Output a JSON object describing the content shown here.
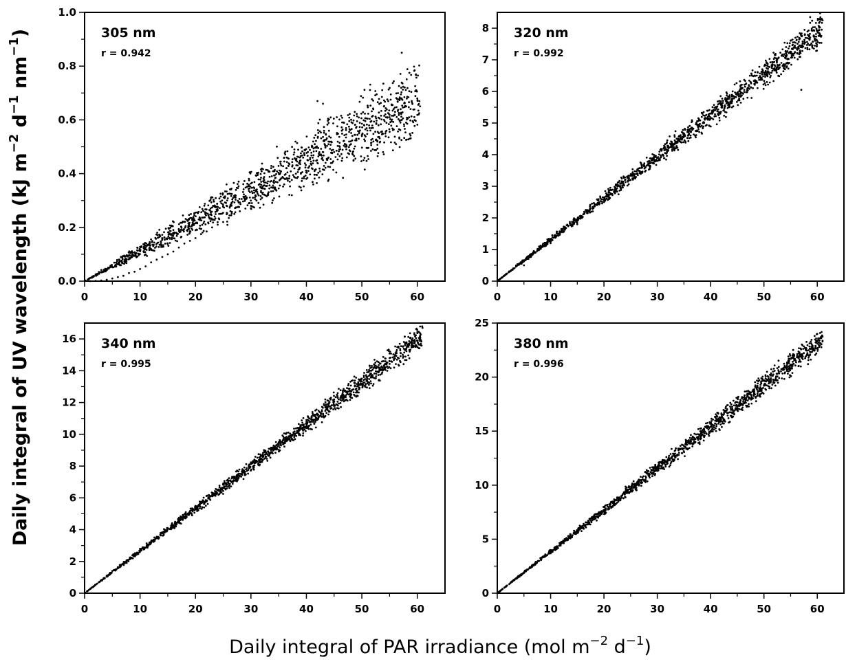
{
  "figure": {
    "ylabel": {
      "main": "Daily integral of UV wavelength (kJ m",
      "sup1": "−2",
      "mid1": " d",
      "sup2": "−1",
      "mid2": " nm",
      "sup3": "−1",
      "end": ")"
    },
    "xlabel": {
      "main": "Daily integral of PAR irradiance (mol m",
      "sup1": "−2",
      "mid1": " d",
      "sup2": "−1",
      "end": ")"
    }
  },
  "chart_data": [
    {
      "type": "scatter",
      "panel_label": "305 nm",
      "r_label": "r = 0.942",
      "xlim": [
        0,
        65
      ],
      "ylim": [
        0,
        1.0
      ],
      "xticks": [
        0,
        10,
        20,
        30,
        40,
        50,
        60
      ],
      "yticks": [
        0.0,
        0.2,
        0.4,
        0.6,
        0.8,
        1.0
      ],
      "ytick_decimals": 1,
      "points": [
        [
          1,
          0.0
        ],
        [
          2,
          0.001
        ],
        [
          3,
          0.002
        ],
        [
          4,
          0.005
        ],
        [
          5,
          0.01
        ],
        [
          6,
          0.015
        ],
        [
          7,
          0.02
        ],
        [
          8,
          0.03
        ],
        [
          9,
          0.035
        ],
        [
          10,
          0.045
        ],
        [
          11,
          0.055
        ],
        [
          12,
          0.07
        ],
        [
          13,
          0.08
        ],
        [
          14,
          0.09
        ],
        [
          15,
          0.1
        ],
        [
          16,
          0.11
        ],
        [
          17,
          0.125
        ],
        [
          18,
          0.14
        ],
        [
          19,
          0.15
        ],
        [
          20,
          0.16
        ],
        [
          21,
          0.175
        ],
        [
          22,
          0.185
        ],
        [
          23,
          0.2
        ],
        [
          24,
          0.21
        ],
        [
          25,
          0.22
        ],
        [
          26,
          0.235
        ],
        [
          27,
          0.25
        ],
        [
          28,
          0.26
        ],
        [
          29,
          0.27
        ],
        [
          30,
          0.28
        ],
        [
          31,
          0.3
        ],
        [
          32,
          0.31
        ],
        [
          33,
          0.32
        ],
        [
          34,
          0.335
        ],
        [
          35,
          0.345
        ],
        [
          36,
          0.36
        ],
        [
          37,
          0.37
        ],
        [
          38,
          0.385
        ],
        [
          39,
          0.4
        ],
        [
          40,
          0.41
        ],
        [
          41,
          0.42
        ],
        [
          42,
          0.44
        ],
        [
          43,
          0.45
        ],
        [
          44,
          0.46
        ],
        [
          45,
          0.48
        ],
        [
          46,
          0.49
        ],
        [
          47,
          0.5
        ],
        [
          48,
          0.52
        ],
        [
          49,
          0.53
        ],
        [
          50,
          0.54
        ],
        [
          51,
          0.56
        ],
        [
          52,
          0.57
        ],
        [
          53,
          0.58
        ],
        [
          54,
          0.6
        ],
        [
          55,
          0.61
        ],
        [
          56,
          0.63
        ],
        [
          57,
          0.64
        ],
        [
          58,
          0.65
        ],
        [
          59,
          0.67
        ],
        [
          60,
          0.68
        ]
      ],
      "trend": {
        "slope": 0.0112,
        "spread_frac": 0.32,
        "count": 1400,
        "xmax": 60.5,
        "extra_points": [
          [
            57.2,
            0.85
          ],
          [
            42,
            0.67
          ],
          [
            43,
            0.66
          ]
        ]
      }
    },
    {
      "type": "scatter",
      "panel_label": "320 nm",
      "r_label": "r = 0.992",
      "xlim": [
        0,
        65
      ],
      "ylim": [
        0,
        8.5
      ],
      "xticks": [
        0,
        10,
        20,
        30,
        40,
        50,
        60
      ],
      "yticks": [
        0,
        1,
        2,
        3,
        4,
        5,
        6,
        7,
        8
      ],
      "ytick_decimals": 0,
      "points": [
        [
          5,
          0.5
        ],
        [
          10,
          1.2
        ],
        [
          15,
          1.8
        ],
        [
          20,
          2.5
        ],
        [
          25,
          3.2
        ],
        [
          30,
          3.9
        ],
        [
          35,
          4.6
        ],
        [
          40,
          5.3
        ],
        [
          45,
          5.9
        ],
        [
          50,
          6.6
        ],
        [
          55,
          7.2
        ],
        [
          60,
          7.9
        ]
      ],
      "trend": {
        "slope": 0.131,
        "spread_frac": 0.09,
        "count": 1400,
        "xmax": 61,
        "extra_points": [
          [
            57,
            6.05
          ],
          [
            61,
            8.25
          ]
        ]
      }
    },
    {
      "type": "scatter",
      "panel_label": "340 nm",
      "r_label": "r = 0.995",
      "xlim": [
        0,
        65
      ],
      "ylim": [
        0,
        17
      ],
      "xticks": [
        0,
        10,
        20,
        30,
        40,
        50,
        60
      ],
      "yticks": [
        0,
        2,
        4,
        6,
        8,
        10,
        12,
        14,
        16
      ],
      "ytick_decimals": 0,
      "points": [
        [
          5,
          1.4
        ],
        [
          10,
          2.8
        ],
        [
          15,
          4.1
        ],
        [
          20,
          5.5
        ],
        [
          25,
          6.9
        ],
        [
          30,
          8.2
        ],
        [
          35,
          9.5
        ],
        [
          40,
          10.9
        ],
        [
          45,
          12.2
        ],
        [
          50,
          13.5
        ],
        [
          55,
          14.8
        ],
        [
          60,
          15.9
        ]
      ],
      "trend": {
        "slope": 0.266,
        "spread_frac": 0.07,
        "count": 1400,
        "xmax": 61,
        "extra_points": [
          [
            60.5,
            16.2
          ]
        ]
      }
    },
    {
      "type": "scatter",
      "panel_label": "380 nm",
      "r_label": "r = 0.996",
      "xlim": [
        0,
        65
      ],
      "ylim": [
        0,
        25
      ],
      "xticks": [
        0,
        10,
        20,
        30,
        40,
        50,
        60
      ],
      "yticks": [
        0,
        5,
        10,
        15,
        20,
        25
      ],
      "ytick_decimals": 0,
      "points": [
        [
          5,
          1.9
        ],
        [
          10,
          3.8
        ],
        [
          15,
          5.8
        ],
        [
          20,
          7.7
        ],
        [
          25,
          9.6
        ],
        [
          30,
          11.5
        ],
        [
          35,
          13.4
        ],
        [
          40,
          15.4
        ],
        [
          45,
          17.3
        ],
        [
          50,
          19.2
        ],
        [
          55,
          21.1
        ],
        [
          60,
          23.1
        ]
      ],
      "trend": {
        "slope": 0.385,
        "spread_frac": 0.07,
        "count": 1400,
        "xmax": 61,
        "extra_points": [
          [
            60,
            24.0
          ]
        ]
      }
    }
  ]
}
